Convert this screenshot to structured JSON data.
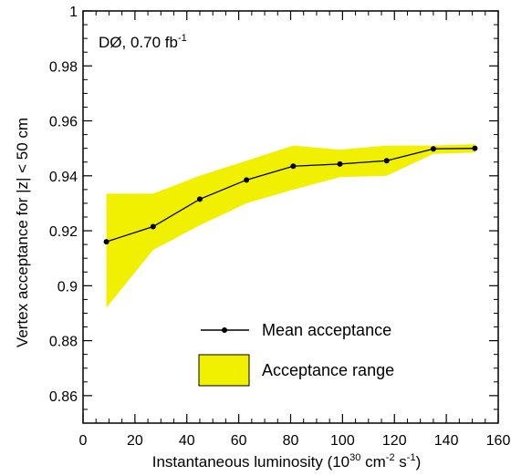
{
  "chart_data": {
    "type": "line",
    "annotation": "DØ, 0.70 fb",
    "annotation_sup": "-1",
    "xlabel": {
      "main": "Instantaneous luminosity (10",
      "sup1": "30",
      "mid1": " cm",
      "sup2": "-2",
      "mid2": " s",
      "sup3": "-1",
      "end": ")"
    },
    "ylabel": "Vertex acceptance for |z| < 50 cm",
    "xlim": [
      0,
      160
    ],
    "ylim": [
      0.85,
      1.0
    ],
    "x_ticks": [
      0,
      20,
      40,
      60,
      80,
      100,
      120,
      140,
      160
    ],
    "y_ticks": [
      0.86,
      0.88,
      0.9,
      0.92,
      0.94,
      0.96,
      0.98,
      1
    ],
    "y_tick_labels": [
      "0.86",
      "0.88",
      "0.9",
      "0.92",
      "0.94",
      "0.96",
      "0.98",
      "1"
    ],
    "grid": false,
    "legend_position": "lower-right",
    "series": [
      {
        "name": "Mean acceptance",
        "color": "#000000",
        "x": [
          9,
          27,
          45,
          63,
          81,
          99,
          117,
          135,
          151
        ],
        "y": [
          0.916,
          0.9215,
          0.9315,
          0.9385,
          0.9435,
          0.9443,
          0.9455,
          0.9498,
          0.95
        ]
      }
    ],
    "band": {
      "name": "Acceptance range",
      "color": "#f0f000",
      "x": [
        9,
        27,
        45,
        63,
        81,
        99,
        117,
        135,
        151
      ],
      "upper": [
        0.9335,
        0.9335,
        0.94,
        0.9455,
        0.951,
        0.9495,
        0.951,
        0.951,
        0.9515
      ],
      "lower": [
        0.892,
        0.913,
        0.922,
        0.93,
        0.935,
        0.9395,
        0.94,
        0.948,
        0.9485
      ]
    }
  }
}
